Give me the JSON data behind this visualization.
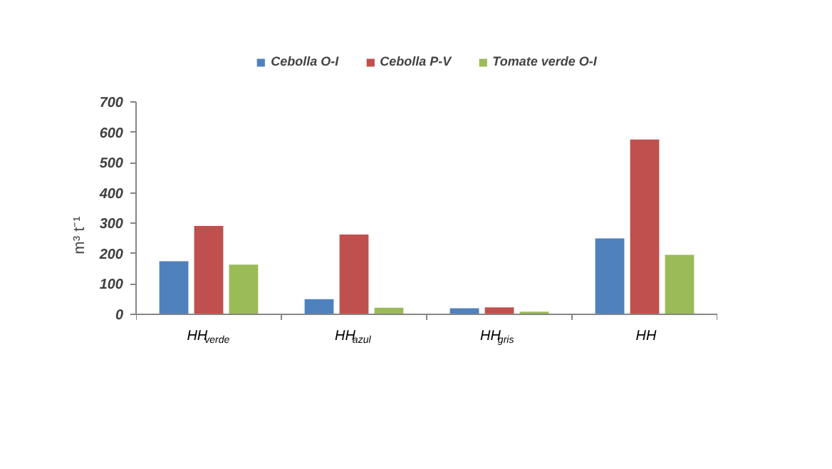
{
  "chart_data": {
    "type": "bar",
    "ylabel": "m³ t⁻¹",
    "categories": [
      "HH$_{verde}$",
      "HH$_{azul}$",
      "HH$_{gris}$",
      "HH"
    ],
    "series": [
      {
        "name": "Cebolla O-I",
        "color": "#4f81bd",
        "values": [
          175,
          50,
          20,
          250
        ]
      },
      {
        "name": "Cebolla P-V",
        "color": "#c0504d",
        "values": [
          291,
          263,
          23,
          576
        ]
      },
      {
        "name": "Tomate verde O-I",
        "color": "#9bbb59",
        "values": [
          164,
          22,
          9,
          196
        ]
      }
    ],
    "ylim": [
      0,
      700
    ],
    "yticks": [
      0,
      100,
      200,
      300,
      400,
      500,
      600,
      700
    ],
    "grid": false,
    "legend": "top"
  }
}
